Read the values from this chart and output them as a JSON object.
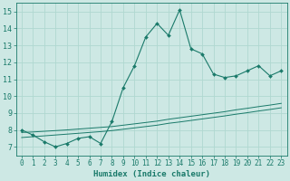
{
  "xlabel": "Humidex (Indice chaleur)",
  "background_color": "#cde8e4",
  "grid_color": "#b0d8d0",
  "line_color": "#1a7a6a",
  "x_data": [
    0,
    1,
    2,
    3,
    4,
    5,
    6,
    7,
    8,
    9,
    10,
    11,
    12,
    13,
    14,
    15,
    16,
    17,
    18,
    19,
    20,
    21,
    22,
    23
  ],
  "y_curve": [
    8.0,
    7.7,
    7.3,
    7.0,
    7.2,
    7.5,
    7.6,
    7.2,
    8.5,
    10.5,
    11.8,
    13.5,
    14.3,
    13.6,
    15.1,
    12.8,
    12.5,
    11.3,
    11.1,
    11.2,
    11.5,
    11.8,
    11.2,
    11.5
  ],
  "y_line1": [
    7.85,
    7.88,
    7.92,
    7.96,
    8.0,
    8.05,
    8.1,
    8.15,
    8.2,
    8.28,
    8.36,
    8.44,
    8.52,
    8.63,
    8.72,
    8.81,
    8.9,
    8.99,
    9.08,
    9.19,
    9.28,
    9.38,
    9.47,
    9.57
  ],
  "y_line2": [
    7.55,
    7.6,
    7.65,
    7.7,
    7.75,
    7.8,
    7.85,
    7.9,
    7.96,
    8.04,
    8.12,
    8.2,
    8.28,
    8.39,
    8.47,
    8.56,
    8.65,
    8.74,
    8.83,
    8.93,
    9.02,
    9.12,
    9.21,
    9.31
  ],
  "ylim": [
    6.5,
    15.5
  ],
  "xlim": [
    -0.5,
    23.5
  ],
  "yticks": [
    7,
    8,
    9,
    10,
    11,
    12,
    13,
    14,
    15
  ],
  "xticks": [
    0,
    1,
    2,
    3,
    4,
    5,
    6,
    7,
    8,
    9,
    10,
    11,
    12,
    13,
    14,
    15,
    16,
    17,
    18,
    19,
    20,
    21,
    22,
    23
  ],
  "tick_fontsize": 5.5,
  "label_fontsize": 6.5
}
